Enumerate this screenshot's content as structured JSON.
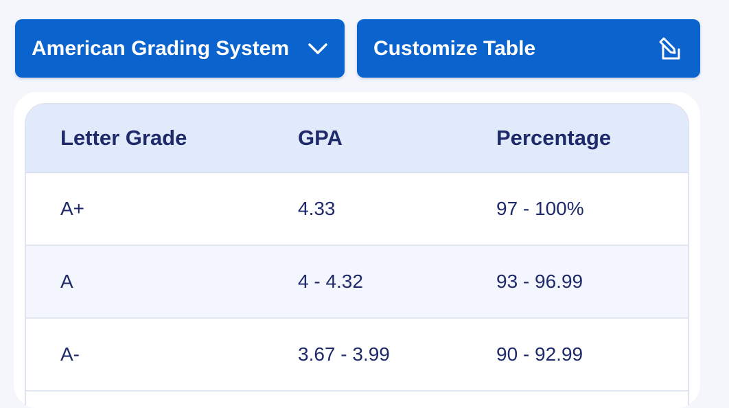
{
  "toolbar": {
    "system_label": "American Grading System",
    "customize_label": "Customize Table",
    "icons": {
      "system": "chevron-down-icon",
      "customize": "edit-icon"
    }
  },
  "table": {
    "headers": [
      "Letter Grade",
      "GPA",
      "Percentage"
    ],
    "rows": [
      {
        "grade": "A+",
        "gpa": "4.33",
        "percentage": "97 - 100%"
      },
      {
        "grade": "A",
        "gpa": "4 - 4.32",
        "percentage": "93 - 96.99"
      },
      {
        "grade": "A-",
        "gpa": "3.67 - 3.99",
        "percentage": "90 - 92.99"
      }
    ]
  },
  "colors": {
    "primary": "#0b63ce",
    "header_bg": "#e1eafb",
    "text": "#1f2a6b",
    "page_bg": "#f4f6fc"
  }
}
